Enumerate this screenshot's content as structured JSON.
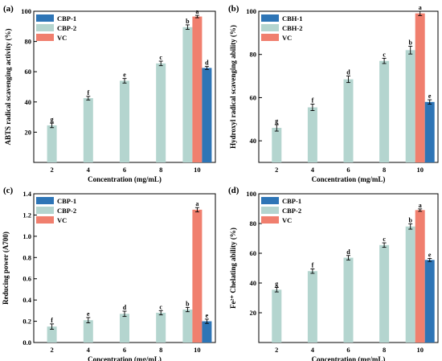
{
  "colors": {
    "CBP1": "#2e75b6",
    "CBP2": "#b4d5cf",
    "VC": "#f07f6e",
    "axis": "#000000"
  },
  "chart_data": [
    {
      "panel": "(a)",
      "type": "bar",
      "xlabel": "Concentration (mg/mL)",
      "ylabel": "ABTS radical scavenging activity (%)",
      "ylim": [
        0,
        100
      ],
      "yticks": [
        20,
        40,
        60,
        80,
        100
      ],
      "categories": [
        "2",
        "4",
        "6",
        "8",
        "10"
      ],
      "legend_position": "top-left",
      "series": [
        {
          "name": "CBP-1",
          "color_key": "CBP1",
          "category": "10",
          "value": 62.5,
          "error": 1,
          "label": "d"
        },
        {
          "name": "CBP-2",
          "color_key": "CBP2",
          "values": [
            24.5,
            42.5,
            54,
            65.5,
            89.5
          ],
          "errors": [
            1.5,
            1.2,
            1.5,
            1.5,
            1.5
          ],
          "labels": [
            "g",
            "f",
            "e",
            "c",
            "b"
          ]
        },
        {
          "name": "VC",
          "color_key": "VC",
          "category": "10",
          "value": 96.5,
          "error": 0.8,
          "label": "a"
        }
      ]
    },
    {
      "panel": "(b)",
      "type": "bar",
      "xlabel": "Concentration (mg/mL)",
      "ylabel": "Hydroxyl radical scavenging ability (%)",
      "ylim": [
        30,
        100
      ],
      "yticks": [
        40,
        60,
        80,
        100
      ],
      "categories": [
        "2",
        "4",
        "6",
        "8",
        "10"
      ],
      "legend_position": "top-left",
      "series": [
        {
          "name": "CBH-1",
          "color_key": "CBP1",
          "category": "10",
          "value": 58,
          "error": 1,
          "label": "e"
        },
        {
          "name": "CBH-2",
          "color_key": "CBP2",
          "values": [
            46,
            55.5,
            68.5,
            77,
            82
          ],
          "errors": [
            1.5,
            1.5,
            1.5,
            1.2,
            1.8
          ],
          "labels": [
            "g",
            "f",
            "d",
            "c",
            "b"
          ]
        },
        {
          "name": "VC",
          "color_key": "VC",
          "category": "10",
          "value": 99,
          "error": 1,
          "label": "a"
        }
      ]
    },
    {
      "panel": "(c)",
      "type": "bar",
      "xlabel": "Concentration (mg/mL)",
      "ylabel": "Reducing power (A700)",
      "ylim": [
        0.0,
        1.4
      ],
      "yticks": [
        0.0,
        0.2,
        0.4,
        0.6,
        0.8,
        1.0,
        1.2,
        1.4
      ],
      "categories": [
        "2",
        "4",
        "6",
        "8",
        "10"
      ],
      "legend_position": "top-left",
      "series": [
        {
          "name": "CBP-1",
          "color_key": "CBP1",
          "category": "10",
          "value": 0.2,
          "error": 0.02,
          "label": "e"
        },
        {
          "name": "CBP-2",
          "color_key": "CBP2",
          "values": [
            0.15,
            0.21,
            0.27,
            0.28,
            0.31
          ],
          "errors": [
            0.025,
            0.025,
            0.025,
            0.02,
            0.02
          ],
          "labels": [
            "f",
            "e",
            "d",
            "c",
            "b"
          ]
        },
        {
          "name": "VC",
          "color_key": "VC",
          "category": "10",
          "value": 1.25,
          "error": 0.02,
          "label": "a"
        }
      ]
    },
    {
      "panel": "(d)",
      "type": "bar",
      "xlabel": "Concentration (mg/mL)",
      "ylabel": "Fe²⁺ Chelating ability (%)",
      "ylim": [
        0,
        100
      ],
      "yticks": [
        20,
        40,
        60,
        80,
        100
      ],
      "categories": [
        "2",
        "4",
        "6",
        "8",
        "10"
      ],
      "legend_position": "top-left",
      "series": [
        {
          "name": "CBP-1",
          "color_key": "CBP1",
          "category": "10",
          "value": 55.5,
          "error": 1,
          "label": "e"
        },
        {
          "name": "CBP-2",
          "color_key": "CBP2",
          "values": [
            35.5,
            48,
            57,
            65.5,
            78
          ],
          "errors": [
            1.5,
            1.5,
            1.5,
            1.5,
            1.8
          ],
          "labels": [
            "g",
            "f",
            "d",
            "c",
            "b"
          ]
        },
        {
          "name": "VC",
          "color_key": "VC",
          "category": "10",
          "value": 89,
          "error": 0.8,
          "label": "a"
        }
      ]
    }
  ]
}
